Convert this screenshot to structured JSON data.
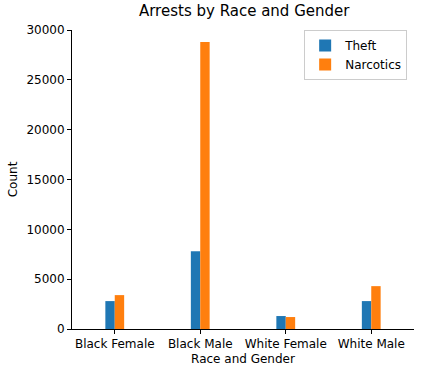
{
  "chart_data": {
    "type": "bar",
    "title": "Arrests by Race and Gender",
    "x_label": "Race and Gender",
    "y_label": "Count",
    "categories": [
      "Black Female",
      "Black Male",
      "White Female",
      "White Male"
    ],
    "series": [
      {
        "name": "Theft",
        "color": "#1f77b4",
        "values": [
          2800,
          7800,
          1300,
          2800
        ]
      },
      {
        "name": "Narcotics",
        "color": "#ff7f0e",
        "values": [
          3400,
          28800,
          1200,
          4300
        ]
      }
    ],
    "ylim": [
      0,
      30000
    ],
    "yticks": [
      0,
      5000,
      10000,
      15000,
      20000,
      25000,
      30000
    ],
    "grid": false,
    "legend": "upper right"
  }
}
